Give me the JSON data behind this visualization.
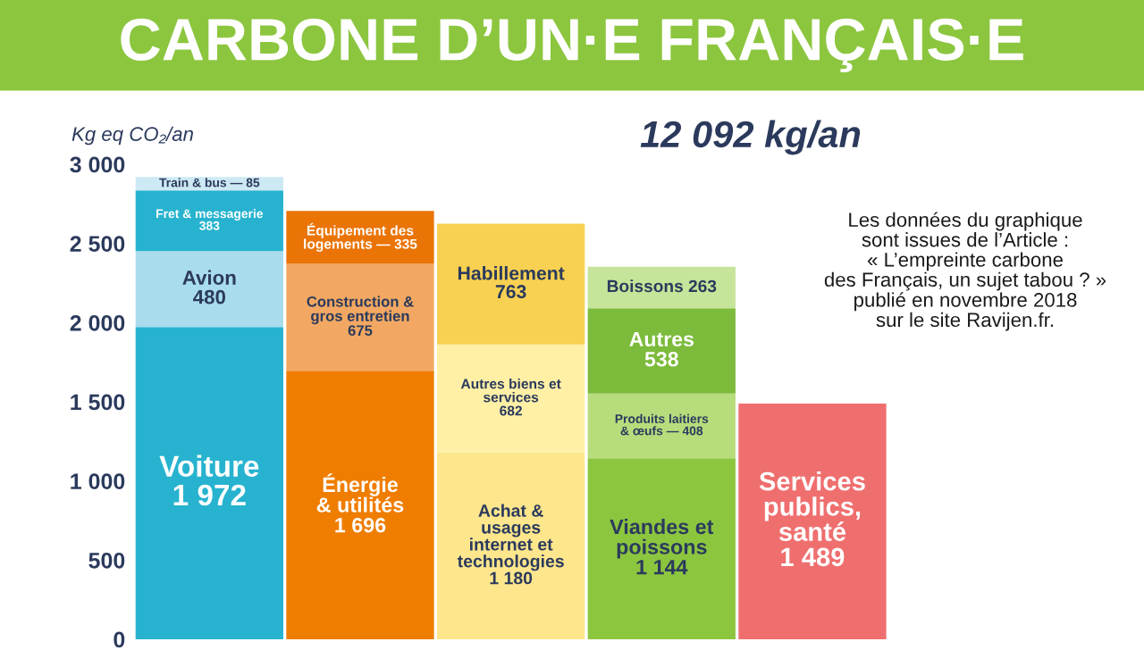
{
  "chart_data": {
    "type": "bar",
    "stacked": true,
    "title": "CARBONE D’UN·E FRANÇAIS·E",
    "ylabel": "Kg eq CO₂/an",
    "categories": [
      null,
      null,
      null,
      null,
      null
    ],
    "series": [
      {
        "colors": [
          "#27b3cf",
          "#ef7d00",
          "#fde68c",
          "#8cc63f",
          "#ef6f6f"
        ],
        "values": [
          1972,
          1696,
          1180,
          1144,
          1489
        ],
        "value_labels": [
          "Voiture\n1 972",
          "Énergie\n& utilités\n1 696",
          "Achat &\nusages\ninternet et\ntechnologies\n1 180",
          "Viandes et\npoissons\n1 144",
          "Services\npublics,\nsanté\n1 489"
        ]
      },
      {
        "colors": [
          "#a9dcec",
          "#f2a862",
          "#fff0a6",
          "#b7dc7c",
          null
        ],
        "values": [
          480,
          675,
          682,
          408,
          null
        ],
        "value_labels": [
          "Avion\n480",
          "Construction &\ngros entretien\n675",
          "Autres biens et\nservices\n682",
          "Produits laitiers\n& œufs — 408",
          null
        ]
      },
      {
        "colors": [
          "#27b3cf",
          "#ea7406",
          "#f8d152",
          "#7cbb3b",
          null
        ],
        "values": [
          383,
          335,
          763,
          538,
          null
        ],
        "value_labels": [
          "Fret & messagerie\n383",
          "Équipement des\nlogements — 335",
          "Habillement\n763",
          "Autres\n538",
          null
        ]
      },
      {
        "colors": [
          "#cde9f4",
          null,
          null,
          "#c6e49a",
          null
        ],
        "values": [
          85,
          null,
          null,
          263,
          null
        ],
        "value_labels": [
          "Train & bus — 85",
          null,
          null,
          "Boissons 263",
          null
        ]
      }
    ],
    "ylim": [
      0,
      3000
    ],
    "yticks": [
      0,
      500,
      {
        "value": 1000,
        "label": "1 000"
      },
      {
        "value": 1500,
        "label": "1 500"
      },
      {
        "value": 2000,
        "label": "2 000"
      },
      {
        "value": 2500,
        "label": "2 500"
      },
      {
        "value": 3000,
        "label": "3 000"
      }
    ],
    "grid": false,
    "legend": false,
    "annotations": [
      "12 092 kg/an",
      "Les données du graphique\nsont issues de l’Article :\n« L’empreinte carbone\ndes Français, un sujet tabou ? »\npublié en novembre 2018\nsur le site Ravijen.fr."
    ]
  }
}
